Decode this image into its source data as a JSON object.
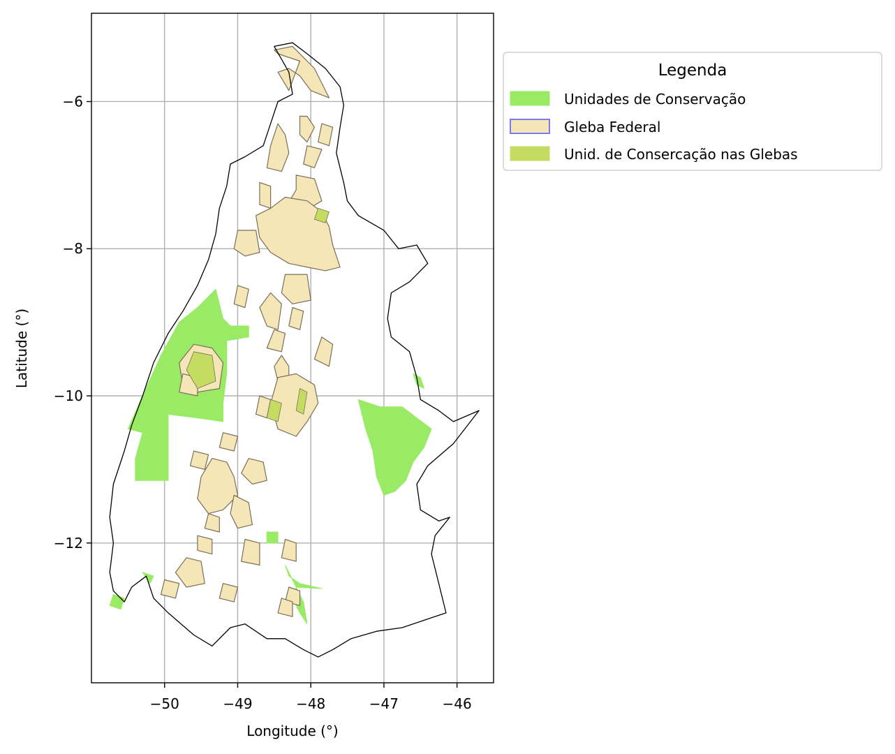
{
  "chart_data": {
    "type": "map",
    "xlabel": "Longitude (°)",
    "ylabel": "Latitude (°)",
    "xlim": [
      -51.0,
      -45.5
    ],
    "ylim": [
      -13.9,
      -4.8
    ],
    "grid": true,
    "x_ticks": [
      {
        "value": -50,
        "label": "−50"
      },
      {
        "value": -49,
        "label": "−49"
      },
      {
        "value": -48,
        "label": "−48"
      },
      {
        "value": -47,
        "label": "−47"
      },
      {
        "value": -46,
        "label": "−46"
      }
    ],
    "y_ticks": [
      {
        "value": -6,
        "label": "−6"
      },
      {
        "value": -8,
        "label": "−8"
      },
      {
        "value": -10,
        "label": "−10"
      },
      {
        "value": -12,
        "label": "−12"
      }
    ],
    "legend": {
      "title": "Legenda",
      "placement": "outside upper right",
      "entries": [
        {
          "label": "Unidades de Conservação",
          "fill": "#99eb66",
          "edge": "#99eb66"
        },
        {
          "label": "Gleba Federal",
          "fill": "#f5e6b8",
          "edge": "#7b7bee"
        },
        {
          "label": "Unid. de Consercação nas Glebas",
          "fill": "#c5dc62",
          "edge": "#c5dc62"
        }
      ]
    },
    "colors": {
      "state_outline": "#000000",
      "conservation": "#99eb66",
      "gleba": "#f5e6b8",
      "gleba_edge": "#7a6e5a",
      "overlap": "#c5dc62",
      "grid": "#b0b0b0"
    },
    "state_outline": [
      [
        -48.5,
        -5.25
      ],
      [
        -48.25,
        -5.2
      ],
      [
        -48.05,
        -5.35
      ],
      [
        -47.8,
        -5.55
      ],
      [
        -47.6,
        -5.8
      ],
      [
        -47.55,
        -6.05
      ],
      [
        -47.6,
        -6.35
      ],
      [
        -47.65,
        -6.7
      ],
      [
        -47.55,
        -7.1
      ],
      [
        -47.5,
        -7.35
      ],
      [
        -47.35,
        -7.55
      ],
      [
        -47.0,
        -7.75
      ],
      [
        -46.8,
        -8.0
      ],
      [
        -46.55,
        -7.95
      ],
      [
        -46.4,
        -8.2
      ],
      [
        -46.65,
        -8.45
      ],
      [
        -46.9,
        -8.6
      ],
      [
        -46.95,
        -8.95
      ],
      [
        -46.9,
        -9.2
      ],
      [
        -46.65,
        -9.4
      ],
      [
        -46.55,
        -9.75
      ],
      [
        -46.5,
        -10.05
      ],
      [
        -46.25,
        -10.2
      ],
      [
        -46.05,
        -10.35
      ],
      [
        -45.7,
        -10.2
      ],
      [
        -46.05,
        -10.65
      ],
      [
        -46.4,
        -10.95
      ],
      [
        -46.55,
        -11.2
      ],
      [
        -46.5,
        -11.55
      ],
      [
        -46.25,
        -11.7
      ],
      [
        -46.1,
        -11.65
      ],
      [
        -46.3,
        -11.9
      ],
      [
        -46.35,
        -12.15
      ],
      [
        -46.25,
        -12.55
      ],
      [
        -46.15,
        -12.95
      ],
      [
        -46.45,
        -13.05
      ],
      [
        -46.75,
        -13.15
      ],
      [
        -47.1,
        -13.2
      ],
      [
        -47.45,
        -13.3
      ],
      [
        -47.7,
        -13.45
      ],
      [
        -47.9,
        -13.55
      ],
      [
        -48.1,
        -13.45
      ],
      [
        -48.35,
        -13.3
      ],
      [
        -48.6,
        -13.3
      ],
      [
        -48.9,
        -13.1
      ],
      [
        -49.1,
        -13.15
      ],
      [
        -49.35,
        -13.4
      ],
      [
        -49.6,
        -13.25
      ],
      [
        -49.95,
        -12.95
      ],
      [
        -50.15,
        -12.75
      ],
      [
        -50.25,
        -12.45
      ],
      [
        -50.45,
        -12.6
      ],
      [
        -50.55,
        -12.8
      ],
      [
        -50.7,
        -12.65
      ],
      [
        -50.75,
        -12.4
      ],
      [
        -50.7,
        -12.0
      ],
      [
        -50.75,
        -11.65
      ],
      [
        -50.7,
        -11.2
      ],
      [
        -50.55,
        -10.75
      ],
      [
        -50.45,
        -10.4
      ],
      [
        -50.3,
        -10.0
      ],
      [
        -50.15,
        -9.55
      ],
      [
        -49.95,
        -9.15
      ],
      [
        -49.75,
        -8.85
      ],
      [
        -49.55,
        -8.5
      ],
      [
        -49.4,
        -8.15
      ],
      [
        -49.3,
        -7.8
      ],
      [
        -49.25,
        -7.45
      ],
      [
        -49.15,
        -7.15
      ],
      [
        -49.1,
        -6.85
      ],
      [
        -48.9,
        -6.75
      ],
      [
        -48.65,
        -6.6
      ],
      [
        -48.55,
        -6.3
      ],
      [
        -48.45,
        -6.0
      ],
      [
        -48.25,
        -5.9
      ],
      [
        -48.3,
        -5.6
      ],
      [
        -48.5,
        -5.25
      ]
    ],
    "conservation_units": [
      [
        [
          -49.3,
          -8.55
        ],
        [
          -49.2,
          -8.95
        ],
        [
          -49.1,
          -9.05
        ],
        [
          -48.85,
          -9.05
        ],
        [
          -48.85,
          -9.2
        ],
        [
          -49.15,
          -9.25
        ],
        [
          -49.15,
          -9.7
        ],
        [
          -49.2,
          -10.1
        ],
        [
          -49.2,
          -10.35
        ],
        [
          -49.55,
          -10.3
        ],
        [
          -49.95,
          -10.25
        ],
        [
          -49.95,
          -10.7
        ],
        [
          -49.95,
          -11.15
        ],
        [
          -50.4,
          -11.15
        ],
        [
          -50.4,
          -10.85
        ],
        [
          -50.3,
          -10.5
        ],
        [
          -50.5,
          -10.45
        ],
        [
          -50.3,
          -10.0
        ],
        [
          -50.05,
          -9.45
        ],
        [
          -49.8,
          -9.0
        ],
        [
          -49.55,
          -8.8
        ]
      ],
      [
        [
          -47.35,
          -10.05
        ],
        [
          -47.05,
          -10.15
        ],
        [
          -46.75,
          -10.15
        ],
        [
          -46.55,
          -10.3
        ],
        [
          -46.35,
          -10.45
        ],
        [
          -46.45,
          -10.7
        ],
        [
          -46.6,
          -10.9
        ],
        [
          -46.7,
          -11.15
        ],
        [
          -46.85,
          -11.3
        ],
        [
          -47.0,
          -11.35
        ],
        [
          -47.1,
          -11.1
        ],
        [
          -47.15,
          -10.75
        ],
        [
          -47.25,
          -10.45
        ]
      ],
      [
        [
          -46.6,
          -9.7
        ],
        [
          -46.5,
          -9.75
        ],
        [
          -46.45,
          -9.9
        ],
        [
          -46.55,
          -9.85
        ]
      ],
      [
        [
          -48.6,
          -11.85
        ],
        [
          -48.45,
          -11.85
        ],
        [
          -48.45,
          -12.0
        ],
        [
          -48.6,
          -12.0
        ]
      ],
      [
        [
          -48.35,
          -12.3
        ],
        [
          -48.3,
          -12.45
        ],
        [
          -48.15,
          -12.55
        ],
        [
          -47.85,
          -12.62
        ],
        [
          -48.2,
          -12.6
        ],
        [
          -48.25,
          -12.75
        ],
        [
          -48.15,
          -12.95
        ],
        [
          -48.05,
          -13.1
        ],
        [
          -48.1,
          -12.8
        ],
        [
          -48.25,
          -12.5
        ]
      ],
      [
        [
          -50.7,
          -12.7
        ],
        [
          -50.55,
          -12.75
        ],
        [
          -50.6,
          -12.9
        ],
        [
          -50.75,
          -12.85
        ]
      ],
      [
        [
          -50.3,
          -12.4
        ],
        [
          -50.15,
          -12.45
        ],
        [
          -50.2,
          -12.55
        ]
      ]
    ],
    "glebas": [
      [
        [
          -48.5,
          -5.3
        ],
        [
          -48.25,
          -5.25
        ],
        [
          -48.1,
          -5.4
        ],
        [
          -47.95,
          -5.55
        ],
        [
          -47.85,
          -5.75
        ],
        [
          -47.75,
          -5.95
        ],
        [
          -48.0,
          -5.85
        ],
        [
          -48.15,
          -5.65
        ],
        [
          -48.3,
          -5.55
        ],
        [
          -48.45,
          -5.6
        ],
        [
          -48.3,
          -5.85
        ],
        [
          -48.15,
          -5.45
        ],
        [
          -48.45,
          -5.35
        ]
      ],
      [
        [
          -48.45,
          -6.3
        ],
        [
          -48.55,
          -6.6
        ],
        [
          -48.6,
          -6.9
        ],
        [
          -48.4,
          -6.95
        ],
        [
          -48.3,
          -6.7
        ],
        [
          -48.35,
          -6.45
        ]
      ],
      [
        [
          -48.15,
          -6.2
        ],
        [
          -48.05,
          -6.2
        ],
        [
          -47.95,
          -6.35
        ],
        [
          -48.05,
          -6.55
        ],
        [
          -48.15,
          -6.45
        ]
      ],
      [
        [
          -47.85,
          -6.3
        ],
        [
          -47.7,
          -6.35
        ],
        [
          -47.75,
          -6.6
        ],
        [
          -47.9,
          -6.55
        ]
      ],
      [
        [
          -48.05,
          -6.6
        ],
        [
          -47.85,
          -6.65
        ],
        [
          -47.95,
          -6.9
        ],
        [
          -48.1,
          -6.85
        ]
      ],
      [
        [
          -48.2,
          -7.0
        ],
        [
          -47.95,
          -7.05
        ],
        [
          -47.85,
          -7.35
        ],
        [
          -48.1,
          -7.5
        ],
        [
          -48.35,
          -7.45
        ],
        [
          -48.2,
          -7.2
        ]
      ],
      [
        [
          -48.7,
          -7.1
        ],
        [
          -48.55,
          -7.15
        ],
        [
          -48.55,
          -7.45
        ],
        [
          -48.7,
          -7.4
        ]
      ],
      [
        [
          -48.35,
          -7.3
        ],
        [
          -48.05,
          -7.35
        ],
        [
          -47.85,
          -7.5
        ],
        [
          -47.75,
          -7.7
        ],
        [
          -47.7,
          -7.95
        ],
        [
          -47.6,
          -8.25
        ],
        [
          -47.8,
          -8.3
        ],
        [
          -48.05,
          -8.25
        ],
        [
          -48.3,
          -8.2
        ],
        [
          -48.55,
          -8.05
        ],
        [
          -48.7,
          -7.85
        ],
        [
          -48.75,
          -7.55
        ],
        [
          -48.55,
          -7.45
        ]
      ],
      [
        [
          -49.0,
          -7.75
        ],
        [
          -48.75,
          -7.75
        ],
        [
          -48.7,
          -8.05
        ],
        [
          -48.9,
          -8.1
        ],
        [
          -49.05,
          -8.0
        ]
      ],
      [
        [
          -48.35,
          -8.35
        ],
        [
          -48.05,
          -8.35
        ],
        [
          -48.0,
          -8.7
        ],
        [
          -48.25,
          -8.75
        ],
        [
          -48.4,
          -8.6
        ]
      ],
      [
        [
          -48.55,
          -8.6
        ],
        [
          -48.4,
          -8.75
        ],
        [
          -48.45,
          -9.1
        ],
        [
          -48.6,
          -9.05
        ],
        [
          -48.7,
          -8.8
        ]
      ],
      [
        [
          -48.25,
          -8.8
        ],
        [
          -48.1,
          -8.85
        ],
        [
          -48.15,
          -9.1
        ],
        [
          -48.3,
          -9.05
        ]
      ],
      [
        [
          -49.0,
          -8.5
        ],
        [
          -48.85,
          -8.55
        ],
        [
          -48.9,
          -8.8
        ],
        [
          -49.05,
          -8.75
        ]
      ],
      [
        [
          -48.5,
          -9.1
        ],
        [
          -48.35,
          -9.15
        ],
        [
          -48.4,
          -9.4
        ],
        [
          -48.6,
          -9.35
        ]
      ],
      [
        [
          -47.85,
          -9.2
        ],
        [
          -47.7,
          -9.3
        ],
        [
          -47.75,
          -9.6
        ],
        [
          -47.95,
          -9.5
        ]
      ],
      [
        [
          -49.6,
          -9.3
        ],
        [
          -49.35,
          -9.35
        ],
        [
          -49.2,
          -9.55
        ],
        [
          -49.25,
          -9.9
        ],
        [
          -49.55,
          -9.95
        ],
        [
          -49.75,
          -9.85
        ],
        [
          -49.8,
          -9.55
        ]
      ],
      [
        [
          -48.4,
          -9.45
        ],
        [
          -48.3,
          -9.6
        ],
        [
          -48.3,
          -9.85
        ],
        [
          -48.45,
          -9.8
        ],
        [
          -48.5,
          -9.6
        ]
      ],
      [
        [
          -48.45,
          -9.75
        ],
        [
          -48.2,
          -9.7
        ],
        [
          -47.95,
          -9.85
        ],
        [
          -47.9,
          -10.1
        ],
        [
          -48.05,
          -10.35
        ],
        [
          -48.2,
          -10.55
        ],
        [
          -48.45,
          -10.45
        ],
        [
          -48.55,
          -10.1
        ]
      ],
      [
        [
          -48.7,
          -10.0
        ],
        [
          -48.55,
          -10.05
        ],
        [
          -48.6,
          -10.3
        ],
        [
          -48.75,
          -10.25
        ]
      ],
      [
        [
          -49.2,
          -10.5
        ],
        [
          -49.0,
          -10.55
        ],
        [
          -49.05,
          -10.75
        ],
        [
          -49.25,
          -10.7
        ]
      ],
      [
        [
          -49.6,
          -10.75
        ],
        [
          -49.4,
          -10.8
        ],
        [
          -49.45,
          -11.0
        ],
        [
          -49.65,
          -10.95
        ]
      ],
      [
        [
          -49.35,
          -10.85
        ],
        [
          -49.15,
          -10.9
        ],
        [
          -49.05,
          -11.1
        ],
        [
          -49.0,
          -11.35
        ],
        [
          -49.2,
          -11.55
        ],
        [
          -49.4,
          -11.6
        ],
        [
          -49.55,
          -11.4
        ],
        [
          -49.5,
          -11.1
        ]
      ],
      [
        [
          -48.85,
          -10.85
        ],
        [
          -48.65,
          -10.9
        ],
        [
          -48.6,
          -11.15
        ],
        [
          -48.8,
          -11.2
        ],
        [
          -48.95,
          -11.05
        ]
      ],
      [
        [
          -49.05,
          -11.35
        ],
        [
          -48.85,
          -11.45
        ],
        [
          -48.8,
          -11.75
        ],
        [
          -49.0,
          -11.8
        ],
        [
          -49.1,
          -11.6
        ]
      ],
      [
        [
          -49.4,
          -11.6
        ],
        [
          -49.25,
          -11.65
        ],
        [
          -49.25,
          -11.85
        ],
        [
          -49.45,
          -11.8
        ]
      ],
      [
        [
          -48.9,
          -11.95
        ],
        [
          -48.7,
          -12.0
        ],
        [
          -48.7,
          -12.3
        ],
        [
          -48.95,
          -12.25
        ]
      ],
      [
        [
          -49.55,
          -11.9
        ],
        [
          -49.35,
          -11.95
        ],
        [
          -49.35,
          -12.15
        ],
        [
          -49.55,
          -12.1
        ]
      ],
      [
        [
          -48.35,
          -11.95
        ],
        [
          -48.2,
          -12.0
        ],
        [
          -48.2,
          -12.25
        ],
        [
          -48.4,
          -12.2
        ]
      ],
      [
        [
          -49.7,
          -12.2
        ],
        [
          -49.5,
          -12.25
        ],
        [
          -49.45,
          -12.55
        ],
        [
          -49.7,
          -12.6
        ],
        [
          -49.85,
          -12.4
        ]
      ],
      [
        [
          -50.0,
          -12.5
        ],
        [
          -49.8,
          -12.55
        ],
        [
          -49.85,
          -12.75
        ],
        [
          -50.05,
          -12.7
        ]
      ],
      [
        [
          -49.2,
          -12.55
        ],
        [
          -49.0,
          -12.6
        ],
        [
          -49.05,
          -12.8
        ],
        [
          -49.25,
          -12.75
        ]
      ],
      [
        [
          -48.3,
          -12.6
        ],
        [
          -48.15,
          -12.65
        ],
        [
          -48.15,
          -12.85
        ],
        [
          -48.35,
          -12.8
        ]
      ],
      [
        [
          -48.4,
          -12.75
        ],
        [
          -48.25,
          -12.8
        ],
        [
          -48.25,
          -13.0
        ],
        [
          -48.45,
          -12.95
        ]
      ],
      [
        [
          -49.75,
          -9.7
        ],
        [
          -49.55,
          -9.75
        ],
        [
          -49.55,
          -10.0
        ],
        [
          -49.8,
          -9.95
        ]
      ]
    ],
    "overlap_units": [
      [
        [
          -47.9,
          -7.45
        ],
        [
          -47.75,
          -7.5
        ],
        [
          -47.8,
          -7.65
        ],
        [
          -47.95,
          -7.6
        ]
      ],
      [
        [
          -49.6,
          -9.4
        ],
        [
          -49.35,
          -9.45
        ],
        [
          -49.3,
          -9.8
        ],
        [
          -49.55,
          -9.9
        ],
        [
          -49.7,
          -9.65
        ]
      ],
      [
        [
          -48.55,
          -10.05
        ],
        [
          -48.4,
          -10.1
        ],
        [
          -48.45,
          -10.35
        ],
        [
          -48.6,
          -10.3
        ]
      ],
      [
        [
          -48.15,
          -9.9
        ],
        [
          -48.05,
          -9.95
        ],
        [
          -48.1,
          -10.25
        ],
        [
          -48.2,
          -10.2
        ]
      ]
    ]
  }
}
